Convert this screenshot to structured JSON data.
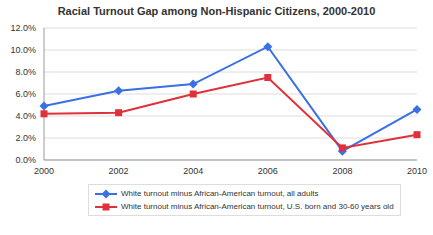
{
  "chart_data": {
    "type": "line",
    "title": "Racial Turnout Gap among Non-Hispanic Citizens, 2000-2010",
    "categories": [
      "2000",
      "2002",
      "2004",
      "2006",
      "2008",
      "2010"
    ],
    "series": [
      {
        "name": "White turnout minus African-American turnout, all adults",
        "color": "#3a6fe6",
        "marker": "diamond",
        "values": [
          4.9,
          6.3,
          6.9,
          10.3,
          0.8,
          4.6
        ]
      },
      {
        "name": "White turnout minus African-American turnout, U.S. born and 30-60 years old",
        "color": "#e0303a",
        "marker": "square",
        "values": [
          4.2,
          4.3,
          6.0,
          7.5,
          1.1,
          2.3
        ]
      }
    ],
    "ylim": [
      0,
      12
    ],
    "yticks": [
      {
        "value": 0,
        "label": "0.0%"
      },
      {
        "value": 2,
        "label": "2.0%"
      },
      {
        "value": 4,
        "label": "4.0%"
      },
      {
        "value": 6,
        "label": "6.0%"
      },
      {
        "value": 8,
        "label": "8.0%"
      },
      {
        "value": 10,
        "label": "10.0%"
      },
      {
        "value": 12,
        "label": "12.0%"
      }
    ],
    "grid": true,
    "legend": "bottom"
  }
}
